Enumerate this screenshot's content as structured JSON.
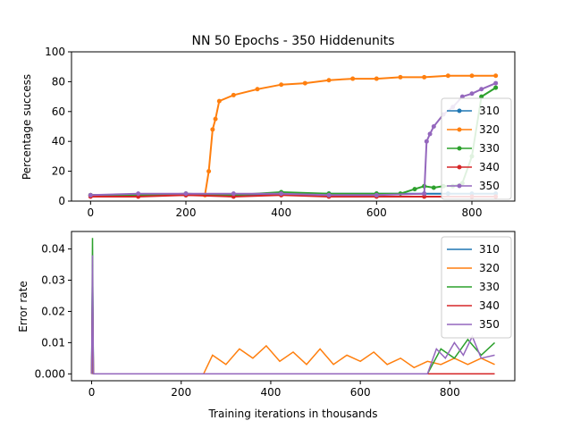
{
  "colors": {
    "310": "#1f77b4",
    "320": "#ff7f0e",
    "330": "#2ca02c",
    "340": "#d62728",
    "350": "#9467bd"
  },
  "chart_data": [
    {
      "type": "line",
      "title": "NN 50 Epochs - 350 Hiddenunits",
      "xlabel": "",
      "ylabel": "Percentage success",
      "xlim": [
        -40,
        890
      ],
      "ylim": [
        0,
        100
      ],
      "xticks": [
        0,
        200,
        400,
        600,
        800
      ],
      "yticks": [
        0,
        20,
        40,
        60,
        80,
        100
      ],
      "legend": "right",
      "markers": true,
      "series": [
        {
          "name": "310",
          "x": [
            0,
            100,
            200,
            300,
            400,
            500,
            600,
            700,
            750,
            800,
            850
          ],
          "values": [
            4,
            4,
            4,
            4,
            5,
            5,
            5,
            5,
            5,
            5,
            5
          ]
        },
        {
          "name": "320",
          "x": [
            0,
            100,
            200,
            240,
            248,
            256,
            262,
            270,
            300,
            350,
            400,
            450,
            500,
            550,
            600,
            650,
            700,
            750,
            800,
            850
          ],
          "values": [
            4,
            4,
            4,
            4,
            20,
            48,
            55,
            67,
            71,
            75,
            78,
            79,
            81,
            82,
            82,
            83,
            83,
            84,
            84,
            84
          ]
        },
        {
          "name": "330",
          "x": [
            0,
            100,
            200,
            300,
            400,
            500,
            600,
            650,
            680,
            700,
            720,
            740,
            760,
            780,
            800,
            820,
            850
          ],
          "values": [
            4,
            4,
            5,
            4,
            6,
            5,
            5,
            5,
            8,
            10,
            9,
            10,
            10,
            12,
            30,
            70,
            76
          ]
        },
        {
          "name": "340",
          "x": [
            0,
            100,
            200,
            300,
            400,
            500,
            600,
            700,
            800,
            850
          ],
          "values": [
            3,
            3,
            4,
            3,
            4,
            3,
            3,
            3,
            3,
            3
          ]
        },
        {
          "name": "350",
          "x": [
            0,
            100,
            200,
            300,
            400,
            500,
            600,
            700,
            705,
            712,
            720,
            740,
            760,
            780,
            800,
            820,
            850
          ],
          "values": [
            4,
            5,
            5,
            5,
            5,
            4,
            4,
            5,
            40,
            45,
            50,
            58,
            63,
            70,
            72,
            75,
            79
          ]
        }
      ]
    },
    {
      "type": "line",
      "title": "",
      "xlabel": "Training iterations in thousands",
      "ylabel": "Error rate",
      "xlim": [
        -45,
        945
      ],
      "ylim": [
        -0.0022,
        0.0456
      ],
      "xticks": [
        0,
        200,
        400,
        600,
        800
      ],
      "yticks": [
        0.0,
        0.01,
        0.02,
        0.03,
        0.04
      ],
      "legend": "top-right",
      "markers": false,
      "series": [
        {
          "name": "310",
          "x": [
            0,
            2,
            4,
            900
          ],
          "values": [
            0.0,
            0.035,
            0.0,
            0.0
          ]
        },
        {
          "name": "320",
          "x": [
            0,
            2,
            4,
            250,
            270,
            300,
            330,
            360,
            390,
            420,
            450,
            480,
            510,
            540,
            570,
            600,
            630,
            660,
            690,
            720,
            750,
            780,
            810,
            840,
            870,
            900
          ],
          "values": [
            0.0,
            0.024,
            0.0,
            0.0,
            0.006,
            0.003,
            0.008,
            0.005,
            0.009,
            0.004,
            0.007,
            0.003,
            0.008,
            0.003,
            0.006,
            0.004,
            0.007,
            0.003,
            0.005,
            0.002,
            0.004,
            0.003,
            0.005,
            0.003,
            0.005,
            0.003
          ]
        },
        {
          "name": "330",
          "x": [
            0,
            2,
            4,
            750,
            780,
            810,
            840,
            870,
            900
          ],
          "values": [
            0.0,
            0.0435,
            0.0,
            0.0,
            0.008,
            0.005,
            0.011,
            0.006,
            0.01
          ]
        },
        {
          "name": "340",
          "x": [
            0,
            2,
            4,
            900
          ],
          "values": [
            0.0,
            0.03,
            0.0,
            0.0
          ]
        },
        {
          "name": "350",
          "x": [
            0,
            2,
            4,
            750,
            770,
            790,
            810,
            830,
            850,
            870,
            900
          ],
          "values": [
            0.0,
            0.038,
            0.0,
            0.0,
            0.008,
            0.005,
            0.01,
            0.006,
            0.012,
            0.005,
            0.006
          ]
        }
      ]
    }
  ]
}
